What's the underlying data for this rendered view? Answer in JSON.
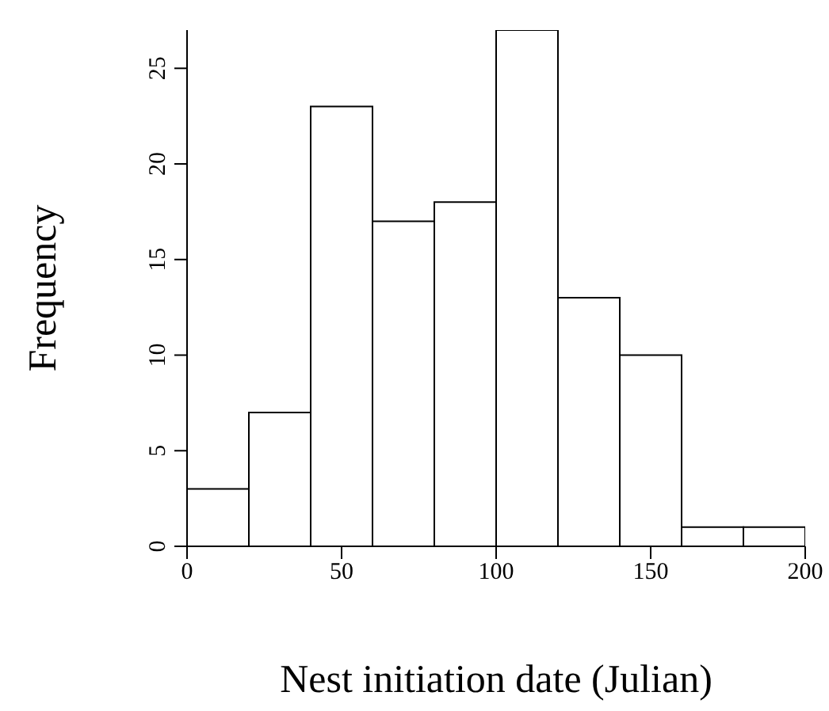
{
  "chart_data": {
    "type": "histogram",
    "xlabel": "Nest initiation date (Julian)",
    "ylabel": "Frequency",
    "bins": [
      0,
      20,
      40,
      60,
      80,
      100,
      120,
      140,
      160,
      180,
      200
    ],
    "values": [
      3,
      7,
      23,
      17,
      18,
      27,
      13,
      10,
      1,
      1
    ],
    "color": "#ffffff",
    "xlim": [
      0,
      200
    ],
    "xticks": [
      0,
      50,
      100,
      150,
      200
    ],
    "ylim": [
      0,
      27
    ],
    "yticks": [
      0,
      5,
      10,
      15,
      20,
      25
    ]
  }
}
